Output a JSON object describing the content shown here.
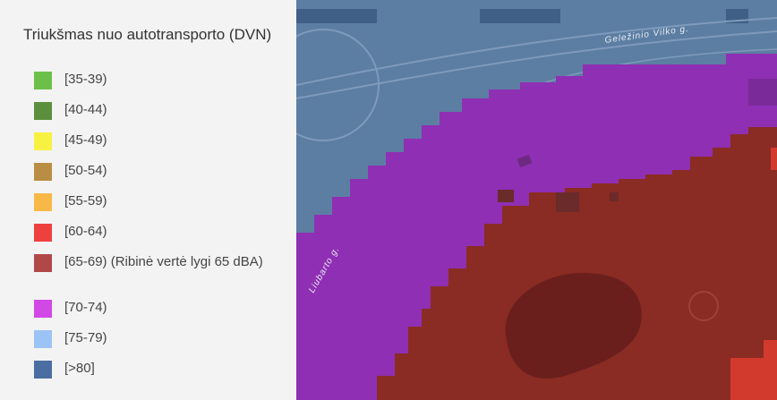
{
  "legend": {
    "title": "Triukšmas nuo autotransporto (DVN)",
    "items": [
      {
        "label": "[35-39)",
        "color": "#6cc04a"
      },
      {
        "label": "[40-44)",
        "color": "#5b8f3d"
      },
      {
        "label": "[45-49)",
        "color": "#f7f241"
      },
      {
        "label": "[50-54)",
        "color": "#b98d43"
      },
      {
        "label": "[55-59)",
        "color": "#f8b847"
      },
      {
        "label": "[60-64)",
        "color": "#ef4040"
      },
      {
        "label": "[65-69) (Ribinė vertė lygi 65 dBA)",
        "color": "#b14848"
      },
      {
        "label": "[70-74)",
        "color": "#d148e6"
      },
      {
        "label": "[75-79)",
        "color": "#9cc3f5"
      },
      {
        "label": "[>80]",
        "color": "#4a6ea1"
      }
    ]
  },
  "map": {
    "road_labels": [
      "Geležinio Vilko g.",
      "Liubarto g."
    ],
    "zone_colors": {
      "base": "#5c7ea3",
      "purple": "#8f2fb3",
      "darkred": "#8a2b24",
      "red": "#d33a2e",
      "darkest": "#6a1f1c"
    }
  }
}
